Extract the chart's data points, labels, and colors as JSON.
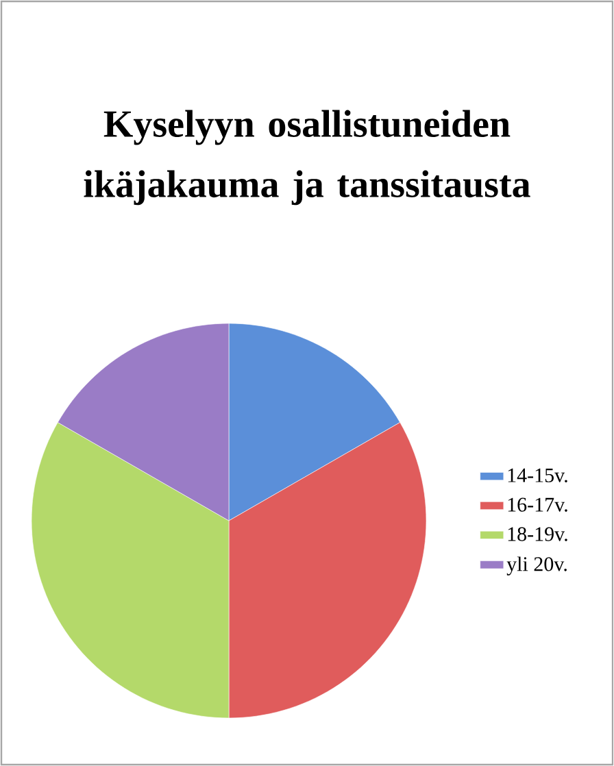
{
  "chart_data": {
    "type": "pie",
    "title": "Kyselyyn osallistuneiden ikäjakauma ja tanssitausta",
    "categories": [
      "14-15v.",
      "16-17v.",
      "18-19v.",
      "yli 20v."
    ],
    "values": [
      16.7,
      33.3,
      33.3,
      16.7
    ],
    "colors": [
      "#5b8fd9",
      "#e05c5c",
      "#b4d96a",
      "#9a7cc6"
    ],
    "legend": "right"
  }
}
